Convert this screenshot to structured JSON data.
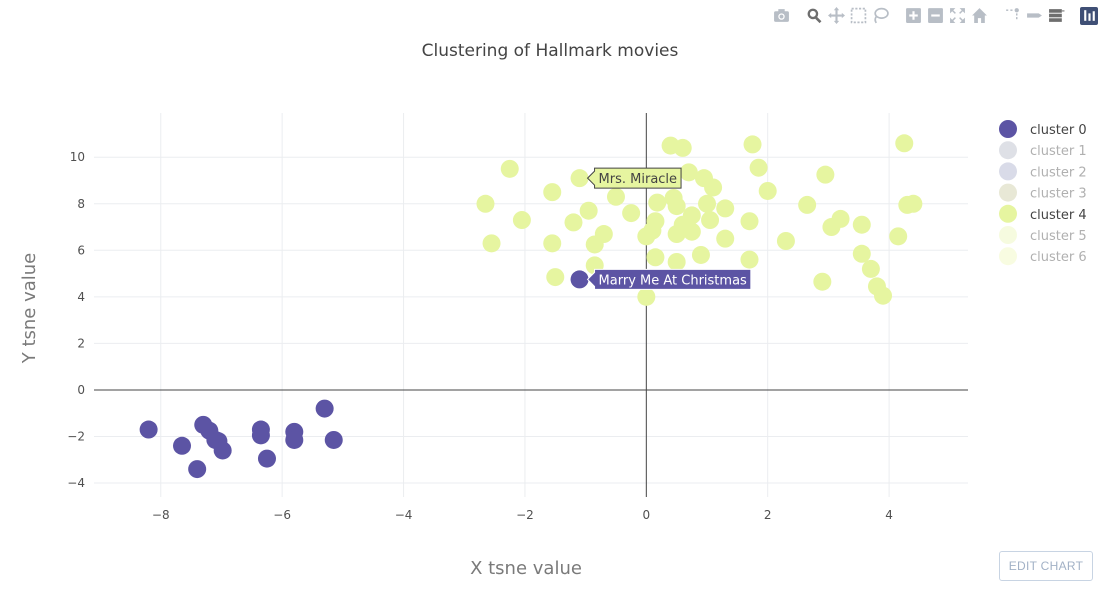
{
  "modebar": {
    "buttons": [
      "camera-icon",
      "zoom-icon",
      "pan-icon",
      "box-select-icon",
      "lasso-select-icon",
      "zoom-in-icon",
      "zoom-out-icon",
      "autoscale-icon",
      "home-icon",
      "spike-lines-icon",
      "hover-closest-icon",
      "hover-compare-icon",
      "plotly-logo-icon"
    ]
  },
  "edit_chart_label": "EDIT CHART",
  "chart_data": {
    "type": "scatter",
    "title": "Clustering of Hallmark movies",
    "xlabel": "X tsne value",
    "ylabel": "Y tsne value",
    "xlim": [
      -9.1,
      5.3
    ],
    "ylim": [
      -4.6,
      11.9
    ],
    "x_ticks": [
      -8,
      -6,
      -4,
      -2,
      0,
      2,
      4
    ],
    "y_ticks": [
      -4,
      -2,
      0,
      2,
      4,
      6,
      8,
      10
    ],
    "x_tick_labels": [
      "−8",
      "−6",
      "−4",
      "−2",
      "0",
      "2",
      "4"
    ],
    "y_tick_labels": [
      "−4",
      "−2",
      "0",
      "2",
      "4",
      "6",
      "8",
      "10"
    ],
    "grid": true,
    "zero_lines": true,
    "legend_position": "right",
    "series": [
      {
        "name": "cluster 0",
        "color": "#5c54a4",
        "visible": true,
        "points": [
          [
            -8.2,
            -1.7
          ],
          [
            -7.65,
            -2.4
          ],
          [
            -7.4,
            -3.4
          ],
          [
            -7.3,
            -1.5
          ],
          [
            -7.2,
            -1.75
          ],
          [
            -7.1,
            -2.15
          ],
          [
            -7.05,
            -2.2
          ],
          [
            -6.98,
            -2.6
          ],
          [
            -6.35,
            -1.7
          ],
          [
            -6.35,
            -1.95
          ],
          [
            -6.25,
            -2.95
          ],
          [
            -5.8,
            -1.8
          ],
          [
            -5.8,
            -2.15
          ],
          [
            -5.3,
            -0.8
          ],
          [
            -5.15,
            -2.15
          ],
          [
            -1.1,
            4.75
          ]
        ]
      },
      {
        "name": "cluster 1",
        "color": "#c2c6d1",
        "visible": false,
        "points": []
      },
      {
        "name": "cluster 2",
        "color": "#b9bdd6",
        "visible": false,
        "points": []
      },
      {
        "name": "cluster 3",
        "color": "#d5d6b4",
        "visible": false,
        "points": []
      },
      {
        "name": "cluster 4",
        "color": "#e6f5a0",
        "visible": true,
        "points": [
          [
            -2.65,
            8.0
          ],
          [
            -2.55,
            6.3
          ],
          [
            -2.25,
            9.5
          ],
          [
            -2.05,
            7.3
          ],
          [
            -1.55,
            8.5
          ],
          [
            -1.55,
            6.3
          ],
          [
            -1.5,
            4.85
          ],
          [
            -1.2,
            7.2
          ],
          [
            -1.1,
            9.1
          ],
          [
            -0.95,
            7.7
          ],
          [
            -0.85,
            6.25
          ],
          [
            -0.85,
            5.35
          ],
          [
            -0.7,
            6.7
          ],
          [
            -0.5,
            8.3
          ],
          [
            -0.25,
            7.6
          ],
          [
            0.0,
            6.6
          ],
          [
            0.0,
            4.0
          ],
          [
            0.1,
            6.85
          ],
          [
            0.15,
            5.7
          ],
          [
            0.15,
            7.25
          ],
          [
            0.18,
            8.05
          ],
          [
            0.4,
            10.5
          ],
          [
            0.45,
            8.25
          ],
          [
            0.5,
            7.9
          ],
          [
            0.5,
            5.5
          ],
          [
            0.5,
            6.7
          ],
          [
            0.6,
            10.4
          ],
          [
            0.6,
            7.1
          ],
          [
            0.7,
            9.35
          ],
          [
            0.75,
            7.5
          ],
          [
            0.75,
            6.8
          ],
          [
            0.9,
            5.8
          ],
          [
            0.95,
            9.1
          ],
          [
            1.0,
            8.0
          ],
          [
            1.05,
            7.3
          ],
          [
            1.1,
            8.7
          ],
          [
            1.3,
            7.8
          ],
          [
            1.3,
            6.5
          ],
          [
            1.7,
            7.25
          ],
          [
            1.7,
            5.6
          ],
          [
            1.75,
            10.55
          ],
          [
            1.85,
            9.55
          ],
          [
            2.0,
            8.55
          ],
          [
            2.3,
            6.4
          ],
          [
            2.65,
            7.95
          ],
          [
            2.9,
            4.65
          ],
          [
            2.95,
            9.25
          ],
          [
            3.05,
            7.0
          ],
          [
            3.2,
            7.35
          ],
          [
            3.55,
            7.1
          ],
          [
            3.55,
            5.85
          ],
          [
            3.7,
            5.2
          ],
          [
            3.8,
            4.45
          ],
          [
            3.9,
            4.05
          ],
          [
            4.15,
            6.6
          ],
          [
            4.25,
            10.6
          ],
          [
            4.3,
            7.95
          ],
          [
            4.4,
            8.0
          ]
        ]
      },
      {
        "name": "cluster 5",
        "color": "#eef8c4",
        "visible": false,
        "points": []
      },
      {
        "name": "cluster 6",
        "color": "#f2f9c8",
        "visible": false,
        "points": []
      }
    ],
    "hover_labels": [
      {
        "text": "Mrs. Miracle",
        "x": -1.1,
        "y": 9.1,
        "series": "cluster 4"
      },
      {
        "text": "Marry Me At Christmas",
        "x": -1.1,
        "y": 4.75,
        "series": "cluster 0"
      }
    ]
  }
}
